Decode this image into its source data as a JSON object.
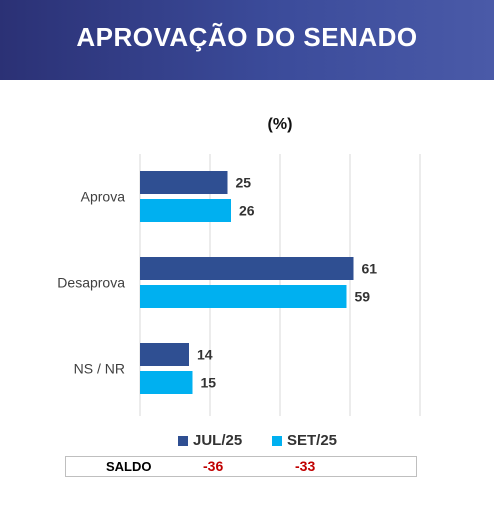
{
  "header": {
    "title": "APROVAÇÃO DO SENADO"
  },
  "chart_data": {
    "type": "bar",
    "orientation": "horizontal",
    "unit_label": "(%)",
    "categories": [
      "Aprova",
      "Desaprova",
      "NS / NR"
    ],
    "series": [
      {
        "name": "JUL/25",
        "values": [
          25,
          61,
          14
        ],
        "color": "#2f4f92"
      },
      {
        "name": "SET/25",
        "values": [
          26,
          59,
          15
        ],
        "color": "#00b0f0"
      }
    ],
    "xlim": [
      0,
      80
    ],
    "grid": true,
    "legend_position": "bottom"
  },
  "saldo": {
    "label": "SALDO",
    "values": [
      "-36",
      "-33"
    ],
    "color": "#c00000"
  }
}
